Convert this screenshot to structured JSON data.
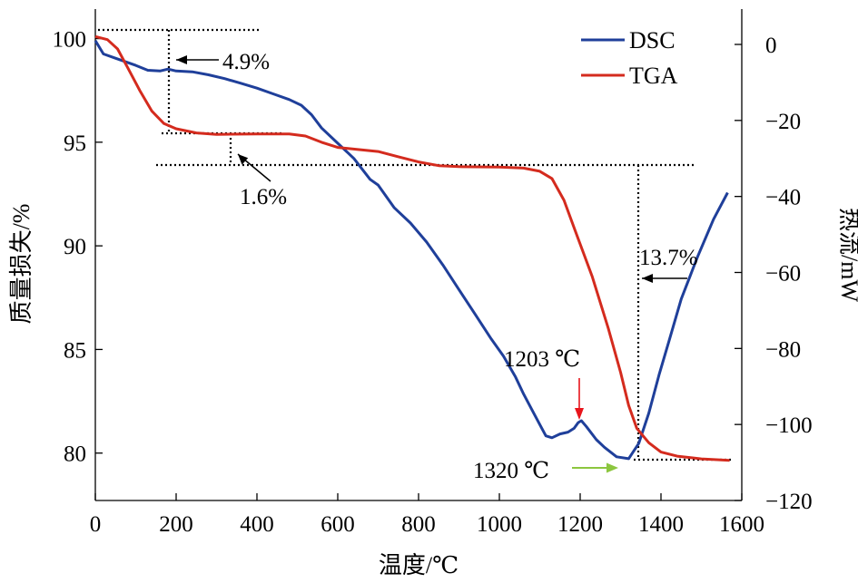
{
  "chart_data": {
    "type": "line",
    "xlabel": "温度/℃",
    "ylabel_left": "质量损失/%",
    "ylabel_right": "热流/mW",
    "xlim": [
      0,
      1600
    ],
    "ylim_left": [
      77.5,
      101.3
    ],
    "ylim_right": [
      -120,
      10
    ],
    "x_ticks": [
      0,
      200,
      400,
      600,
      800,
      1000,
      1200,
      1400,
      1600
    ],
    "y_left_ticks": [
      80,
      85,
      90,
      95,
      100
    ],
    "y_right_ticks": [
      0,
      -20,
      -40,
      -60,
      -80,
      -100,
      -120
    ],
    "legend_position": "top-right",
    "series": [
      {
        "name": "DSC",
        "axis": "right",
        "color": "#1f3f9a",
        "points": [
          [
            0,
            1
          ],
          [
            20,
            -2.5
          ],
          [
            60,
            -4
          ],
          [
            100,
            -5.5
          ],
          [
            130,
            -6.8
          ],
          [
            160,
            -7
          ],
          [
            180,
            -6.5
          ],
          [
            200,
            -7
          ],
          [
            240,
            -7.2
          ],
          [
            280,
            -8
          ],
          [
            320,
            -9
          ],
          [
            360,
            -10.2
          ],
          [
            400,
            -11.5
          ],
          [
            440,
            -13
          ],
          [
            480,
            -14.5
          ],
          [
            510,
            -16
          ],
          [
            535,
            -18.5
          ],
          [
            560,
            -22
          ],
          [
            600,
            -26
          ],
          [
            640,
            -30
          ],
          [
            680,
            -35.5
          ],
          [
            700,
            -37
          ],
          [
            740,
            -43
          ],
          [
            780,
            -47
          ],
          [
            820,
            -52
          ],
          [
            860,
            -58
          ],
          [
            900,
            -64.5
          ],
          [
            940,
            -71
          ],
          [
            980,
            -77.5
          ],
          [
            1010,
            -82
          ],
          [
            1040,
            -87.5
          ],
          [
            1060,
            -92
          ],
          [
            1080,
            -96
          ],
          [
            1100,
            -100
          ],
          [
            1115,
            -103
          ],
          [
            1130,
            -103.5
          ],
          [
            1150,
            -102.5
          ],
          [
            1170,
            -102
          ],
          [
            1185,
            -101
          ],
          [
            1195,
            -99.5
          ],
          [
            1203,
            -99
          ],
          [
            1215,
            -100.5
          ],
          [
            1240,
            -104
          ],
          [
            1260,
            -106
          ],
          [
            1290,
            -108.5
          ],
          [
            1320,
            -109
          ],
          [
            1345,
            -105
          ],
          [
            1370,
            -97
          ],
          [
            1395,
            -87
          ],
          [
            1420,
            -78
          ],
          [
            1450,
            -67
          ],
          [
            1490,
            -56
          ],
          [
            1530,
            -46
          ],
          [
            1565,
            -39
          ]
        ]
      },
      {
        "name": "TGA",
        "axis": "left",
        "color": "#d42b1e",
        "points": [
          [
            0,
            100.1
          ],
          [
            30,
            99.95
          ],
          [
            55,
            99.5
          ],
          [
            80,
            98.6
          ],
          [
            110,
            97.5
          ],
          [
            140,
            96.5
          ],
          [
            170,
            95.9
          ],
          [
            200,
            95.65
          ],
          [
            250,
            95.45
          ],
          [
            300,
            95.38
          ],
          [
            400,
            95.4
          ],
          [
            480,
            95.4
          ],
          [
            520,
            95.3
          ],
          [
            560,
            95.0
          ],
          [
            600,
            94.75
          ],
          [
            650,
            94.65
          ],
          [
            700,
            94.55
          ],
          [
            750,
            94.3
          ],
          [
            800,
            94.05
          ],
          [
            850,
            93.87
          ],
          [
            900,
            93.82
          ],
          [
            1000,
            93.8
          ],
          [
            1060,
            93.75
          ],
          [
            1100,
            93.6
          ],
          [
            1130,
            93.25
          ],
          [
            1160,
            92.2
          ],
          [
            1190,
            90.6
          ],
          [
            1230,
            88.5
          ],
          [
            1270,
            86.0
          ],
          [
            1300,
            83.9
          ],
          [
            1320,
            82.3
          ],
          [
            1340,
            81.2
          ],
          [
            1370,
            80.5
          ],
          [
            1400,
            80.05
          ],
          [
            1440,
            79.85
          ],
          [
            1500,
            79.72
          ],
          [
            1570,
            79.65
          ]
        ]
      }
    ],
    "annotations": [
      {
        "text": "4.9%"
      },
      {
        "text": "1.6%"
      },
      {
        "text": "13.7%"
      },
      {
        "text": "1203 ℃",
        "color": "#e8141b"
      },
      {
        "text": "1320 ℃",
        "color": "#8cc63f"
      }
    ]
  }
}
